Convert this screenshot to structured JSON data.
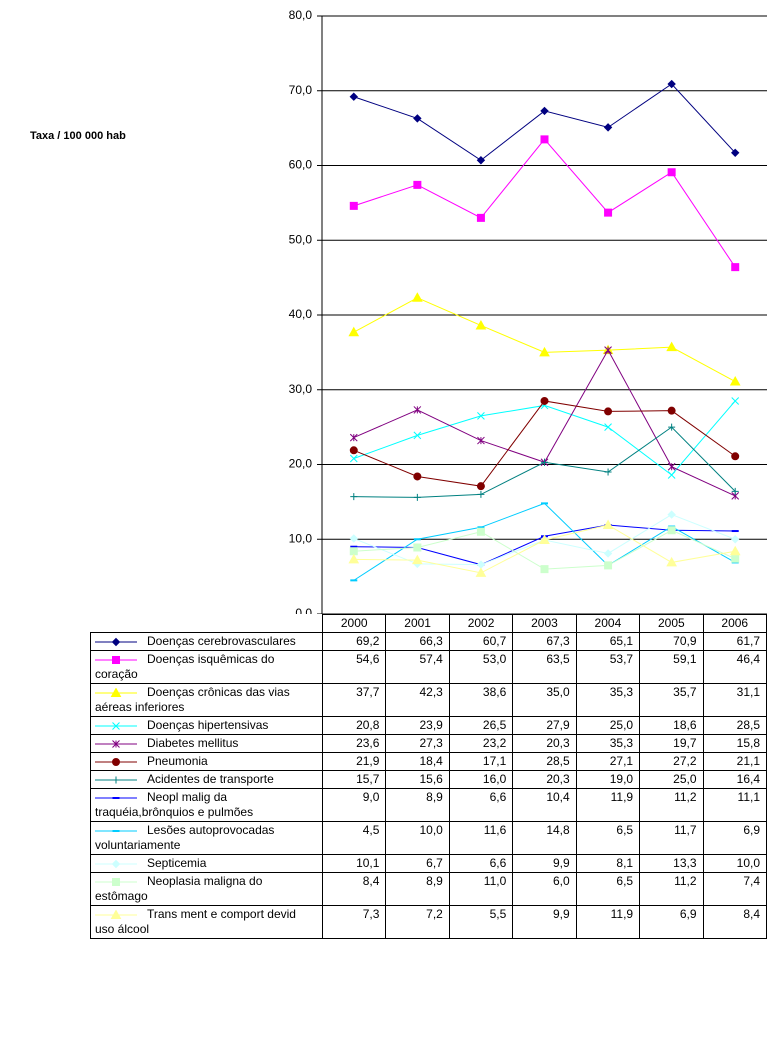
{
  "chart_data": {
    "type": "line",
    "y_label": "Taxa / 100 000 hab",
    "categories": [
      "2000",
      "2001",
      "2002",
      "2003",
      "2004",
      "2005",
      "2006"
    ],
    "ylim": [
      0,
      80
    ],
    "yticks": [
      {
        "value": 0,
        "label": "0,0"
      },
      {
        "value": 10,
        "label": "10,0"
      },
      {
        "value": 20,
        "label": "20,0"
      },
      {
        "value": 30,
        "label": "30,0"
      },
      {
        "value": 40,
        "label": "40,0"
      },
      {
        "value": 50,
        "label": "50,0"
      },
      {
        "value": 60,
        "label": "60,0"
      },
      {
        "value": 70,
        "label": "70,0"
      },
      {
        "value": 80,
        "label": "80,0"
      }
    ],
    "grid": true,
    "series": [
      {
        "name": "Doenças cerebrovasculares",
        "color": "#000080",
        "marker": "diamond",
        "values": [
          69.2,
          66.3,
          60.7,
          67.3,
          65.1,
          70.9,
          61.7
        ],
        "value_labels": [
          "69,2",
          "66,3",
          "60,7",
          "67,3",
          "65,1",
          "70,9",
          "61,7"
        ]
      },
      {
        "name": "Doenças isquêmicas do coração",
        "color": "#FF00FF",
        "marker": "square",
        "values": [
          54.6,
          57.4,
          53.0,
          63.5,
          53.7,
          59.1,
          46.4
        ],
        "value_labels": [
          "54,6",
          "57,4",
          "53,0",
          "63,5",
          "53,7",
          "59,1",
          "46,4"
        ]
      },
      {
        "name": "Doenças crônicas das vias aéreas inferiores",
        "color": "#FFFF00",
        "marker": "triangle",
        "values": [
          37.7,
          42.3,
          38.6,
          35.0,
          35.3,
          35.7,
          31.1
        ],
        "value_labels": [
          "37,7",
          "42,3",
          "38,6",
          "35,0",
          "35,3",
          "35,7",
          "31,1"
        ]
      },
      {
        "name": "Doenças hipertensivas",
        "color": "#00FFFF",
        "marker": "x",
        "values": [
          20.8,
          23.9,
          26.5,
          27.9,
          25.0,
          18.6,
          28.5
        ],
        "value_labels": [
          "20,8",
          "23,9",
          "26,5",
          "27,9",
          "25,0",
          "18,6",
          "28,5"
        ]
      },
      {
        "name": "Diabetes mellitus",
        "color": "#800080",
        "marker": "star",
        "values": [
          23.6,
          27.3,
          23.2,
          20.3,
          35.3,
          19.7,
          15.8
        ],
        "value_labels": [
          "23,6",
          "27,3",
          "23,2",
          "20,3",
          "35,3",
          "19,7",
          "15,8"
        ]
      },
      {
        "name": "Pneumonia",
        "color": "#800000",
        "marker": "circle",
        "values": [
          21.9,
          18.4,
          17.1,
          28.5,
          27.1,
          27.2,
          21.1
        ],
        "value_labels": [
          "21,9",
          "18,4",
          "17,1",
          "28,5",
          "27,1",
          "27,2",
          "21,1"
        ]
      },
      {
        "name": "Acidentes de transporte",
        "color": "#008080",
        "marker": "plus",
        "values": [
          15.7,
          15.6,
          16.0,
          20.3,
          19.0,
          25.0,
          16.4
        ],
        "value_labels": [
          "15,7",
          "15,6",
          "16,0",
          "20,3",
          "19,0",
          "25,0",
          "16,4"
        ]
      },
      {
        "name": "Neopl malig da traquéia,brônquios e pulmões",
        "color": "#0000FF",
        "marker": "dash",
        "values": [
          9.0,
          8.9,
          6.6,
          10.4,
          11.9,
          11.2,
          11.1
        ],
        "value_labels": [
          "9,0",
          "8,9",
          "6,6",
          "10,4",
          "11,9",
          "11,2",
          "11,1"
        ]
      },
      {
        "name": "Lesões autoprovocadas voluntariamente",
        "color": "#00CCFF",
        "marker": "dash",
        "values": [
          4.5,
          10.0,
          11.6,
          14.8,
          6.5,
          11.7,
          6.9
        ],
        "value_labels": [
          "4,5",
          "10,0",
          "11,6",
          "14,8",
          "6,5",
          "11,7",
          "6,9"
        ]
      },
      {
        "name": "Septicemia",
        "color": "#CCFFFF",
        "marker": "diamond",
        "values": [
          10.1,
          6.7,
          6.6,
          9.9,
          8.1,
          13.3,
          10.0
        ],
        "value_labels": [
          "10,1",
          "6,7",
          "6,6",
          "9,9",
          "8,1",
          "13,3",
          "10,0"
        ]
      },
      {
        "name": "Neoplasia maligna do estômago",
        "color": "#CCFFCC",
        "marker": "square",
        "values": [
          8.4,
          8.9,
          11.0,
          6.0,
          6.5,
          11.2,
          7.4
        ],
        "value_labels": [
          "8,4",
          "8,9",
          "11,0",
          "6,0",
          "6,5",
          "11,2",
          "7,4"
        ]
      },
      {
        "name": "Trans ment e comport devid uso álcool",
        "color": "#FFFF99",
        "marker": "triangle",
        "values": [
          7.3,
          7.2,
          5.5,
          9.9,
          11.9,
          6.9,
          8.4
        ],
        "value_labels": [
          "7,3",
          "7,2",
          "5,5",
          "9,9",
          "11,9",
          "6,9",
          "8,4"
        ]
      }
    ]
  }
}
